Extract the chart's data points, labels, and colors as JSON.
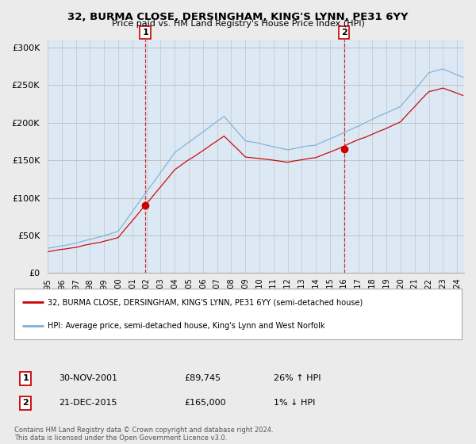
{
  "title": "32, BURMA CLOSE, DERSINGHAM, KING'S LYNN, PE31 6YY",
  "subtitle": "Price paid vs. HM Land Registry's House Price Index (HPI)",
  "legend_line1": "32, BURMA CLOSE, DERSINGHAM, KING'S LYNN, PE31 6YY (semi-detached house)",
  "legend_line2": "HPI: Average price, semi-detached house, King's Lynn and West Norfolk",
  "transaction1_date": "30-NOV-2001",
  "transaction1_price": 89745,
  "transaction1_hpi_change": "26% ↑ HPI",
  "transaction2_date": "21-DEC-2015",
  "transaction2_price": 165000,
  "transaction2_hpi_change": "1% ↓ HPI",
  "footer": "Contains HM Land Registry data © Crown copyright and database right 2024.\nThis data is licensed under the Open Government Licence v3.0.",
  "line_color_red": "#cc0000",
  "line_color_blue": "#7fb0d8",
  "marker_color": "#cc0000",
  "vline_color": "#cc0000",
  "background_color": "#ebebeb",
  "plot_bg_color": "#dce9f5",
  "ylim": [
    0,
    310000
  ],
  "yticks": [
    0,
    50000,
    100000,
    150000,
    200000,
    250000,
    300000
  ],
  "xlim_start": 1995,
  "xlim_end": 2024.5,
  "t1_x": 2001.917,
  "t2_x": 2016.0
}
